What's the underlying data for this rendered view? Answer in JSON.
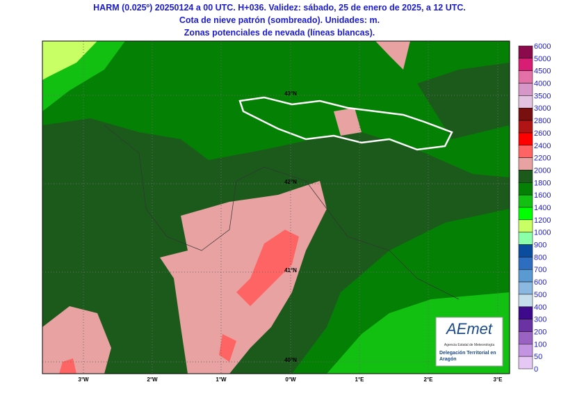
{
  "header": {
    "lines": [
      "HARM (0.025º) 20250124 a 00 UTC. H+036. Validez: sábado, 25 de enero de 2025, a 12 UTC.",
      "Cota de nieve patrón (sombreado). Unidades: m.",
      "Zonas potenciales de nevada (líneas blancas)."
    ]
  },
  "map": {
    "longitudes": [
      "3°W",
      "2°W",
      "1°W",
      "0°W",
      "1°E",
      "2°E",
      "3°E"
    ],
    "latitudes": [
      "43°N",
      "42°N",
      "41°N",
      "40°N"
    ]
  },
  "colorbar": {
    "labels": [
      "6000",
      "5000",
      "4500",
      "4000",
      "3500",
      "3000",
      "2800",
      "2600",
      "2400",
      "2200",
      "2000",
      "1800",
      "1600",
      "1400",
      "1200",
      "1000",
      "900",
      "800",
      "700",
      "600",
      "500",
      "400",
      "300",
      "200",
      "100",
      "50",
      "0"
    ],
    "colors": [
      "#8a0a4c",
      "#d81e74",
      "#e470a8",
      "#d796c8",
      "#e2c4e2",
      "#781010",
      "#b01414",
      "#ff0000",
      "#ff6464",
      "#e8a2a2",
      "#1c5a1c",
      "#048004",
      "#12c012",
      "#00ff00",
      "#c8ff64",
      "#8cffaa",
      "#0a4c9e",
      "#2e6ec0",
      "#5a9ad2",
      "#8ab8e0",
      "#c4deec",
      "#3c0a8a",
      "#6a32a2",
      "#9a62c2",
      "#c294e2",
      "#e6c8f4"
    ]
  },
  "logo": {
    "name": "AEmet",
    "subtitle": "Agencia Estatal de Meteorología",
    "office": "Delegación Territorial en Aragón"
  }
}
